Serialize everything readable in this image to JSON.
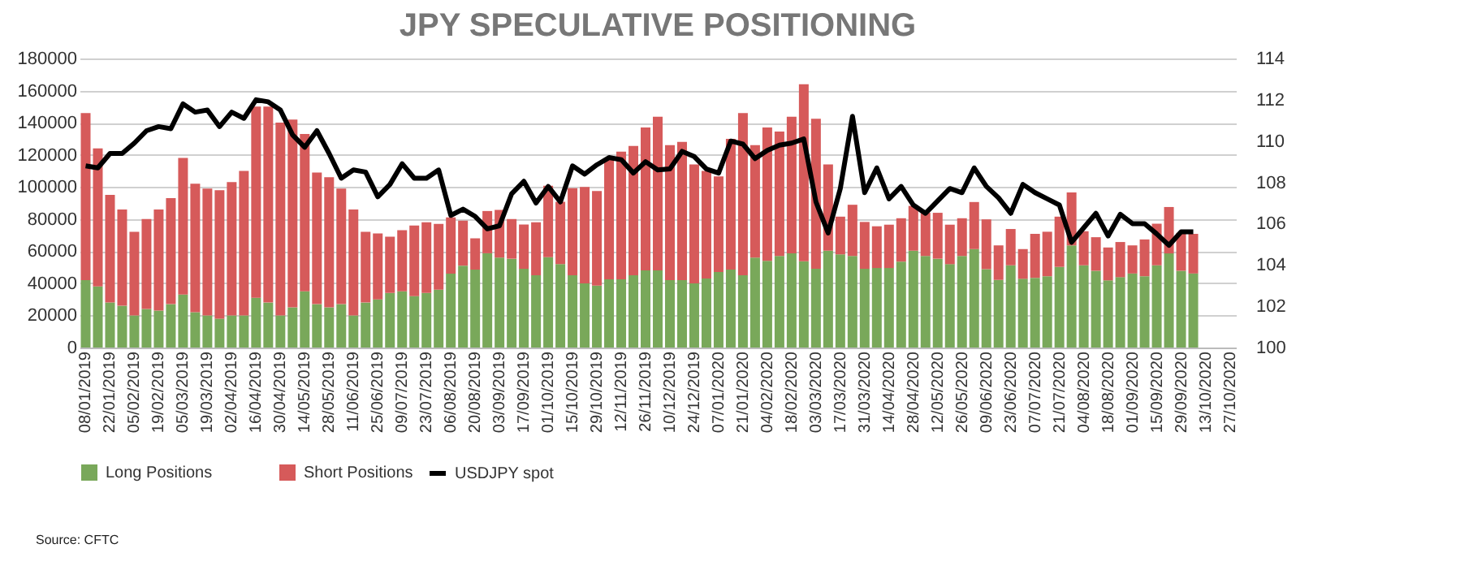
{
  "chart_data": {
    "type": "bar",
    "title": "JPY SPECULATIVE POSITIONING",
    "stacked": true,
    "grid": "y",
    "legend": "bottom",
    "categories": [
      "08/01/2019",
      null,
      "22/01/2019",
      null,
      "05/02/2019",
      null,
      "19/02/2019",
      null,
      "05/03/2019",
      null,
      "19/03/2019",
      null,
      "02/04/2019",
      null,
      "16/04/2019",
      null,
      "30/04/2019",
      null,
      "14/05/2019",
      null,
      "28/05/2019",
      null,
      "11/06/2019",
      null,
      "25/06/2019",
      null,
      "09/07/2019",
      null,
      "23/07/2019",
      null,
      "06/08/2019",
      null,
      "20/08/2019",
      null,
      "03/09/2019",
      null,
      "17/09/2019",
      null,
      "01/10/2019",
      null,
      "15/10/2019",
      null,
      "29/10/2019",
      null,
      "12/11/2019",
      null,
      "26/11/2019",
      null,
      "10/12/2019",
      null,
      "24/12/2019",
      null,
      "07/01/2020",
      null,
      "21/01/2020",
      null,
      "04/02/2020",
      null,
      "18/02/2020",
      null,
      "03/03/2020",
      null,
      "17/03/2020",
      null,
      "31/03/2020",
      null,
      "14/04/2020",
      null,
      "28/04/2020",
      null,
      "12/05/2020",
      null,
      "26/05/2020",
      null,
      "09/06/2020",
      null,
      "23/06/2020",
      null,
      "07/07/2020",
      null,
      "21/07/2020",
      null,
      "04/08/2020",
      null,
      "18/08/2020",
      null,
      "01/09/2020",
      null,
      "15/09/2020",
      null,
      "29/09/2020",
      null,
      "13/10/2020",
      null,
      "27/10/2020"
    ],
    "ylim": [
      0,
      180000
    ],
    "yticks": [
      0,
      20000,
      40000,
      60000,
      80000,
      100000,
      120000,
      140000,
      160000,
      180000
    ],
    "y2lim": [
      100,
      114
    ],
    "y2ticks": [
      100,
      102,
      104,
      106,
      108,
      110,
      112,
      114
    ],
    "series": [
      {
        "name": "Long Positions",
        "color": "#79a85a",
        "values": [
          42000,
          38000,
          28000,
          26000,
          20000,
          24000,
          23000,
          27000,
          33000,
          22000,
          20000,
          18000,
          20000,
          20000,
          31000,
          28000,
          20000,
          25000,
          35000,
          27000,
          25000,
          27000,
          20000,
          28000,
          30000,
          34000,
          35000,
          32000,
          34000,
          36000,
          46000,
          51000,
          48500,
          58700,
          56000,
          55300,
          49000,
          45000,
          56300,
          52000,
          45000,
          40000,
          38500,
          42500,
          42500,
          45000,
          48000,
          48000,
          42000,
          42000,
          40000,
          43000,
          47000,
          48500,
          45000,
          56000,
          54000,
          57000,
          58700,
          53700,
          49000,
          60300,
          58000,
          57000,
          49000,
          49500,
          49500,
          53500,
          60300,
          57000,
          55300,
          51900,
          57000,
          61300,
          48800,
          42100,
          51200,
          42800,
          43400,
          44400,
          50200,
          63600,
          51200,
          47800,
          41800,
          43800,
          46100,
          44400,
          51200,
          58600,
          47800,
          46100,
          null,
          null,
          null
        ]
      },
      {
        "name": "Short Positions",
        "color": "#d65a5a",
        "values": [
          104000,
          86000,
          67000,
          60000,
          52000,
          56000,
          63000,
          66000,
          85000,
          80000,
          79000,
          80000,
          83000,
          90000,
          119000,
          122000,
          120000,
          117000,
          98000,
          82000,
          81000,
          72000,
          66000,
          44000,
          41000,
          35000,
          38000,
          44000,
          44000,
          41000,
          35000,
          28000,
          19500,
          26300,
          29700,
          24700,
          27600,
          33000,
          44500,
          38700,
          54200,
          60000,
          59000,
          75200,
          79500,
          80500,
          89000,
          95700,
          84000,
          86000,
          74000,
          67000,
          59500,
          81500,
          101000,
          70000,
          83000,
          77500,
          85000,
          110300,
          93400,
          53700,
          23500,
          31900,
          29200,
          26000,
          27000,
          27000,
          27900,
          26900,
          28600,
          24600,
          23500,
          29300,
          31000,
          21500,
          22600,
          18500,
          27400,
          27700,
          31300,
          33000,
          21200,
          20900,
          20500,
          21900,
          17500,
          22900,
          25900,
          28900,
          23600,
          24700,
          null,
          null,
          null
        ]
      },
      {
        "name": "USDJPY spot",
        "type": "line",
        "axis": "y2",
        "color": "#000000",
        "values": [
          108.8,
          108.7,
          109.4,
          109.4,
          109.9,
          110.5,
          110.7,
          110.6,
          111.8,
          111.4,
          111.5,
          110.7,
          111.4,
          111.1,
          112.0,
          111.9,
          111.5,
          110.3,
          109.7,
          110.5,
          109.4,
          108.2,
          108.6,
          108.5,
          107.3,
          107.9,
          108.9,
          108.2,
          108.2,
          108.6,
          106.4,
          106.7,
          106.35,
          105.75,
          105.9,
          107.45,
          108.05,
          107.0,
          107.8,
          107.05,
          108.8,
          108.4,
          108.85,
          109.2,
          109.1,
          108.45,
          109.0,
          108.6,
          108.65,
          109.5,
          109.25,
          108.65,
          108.45,
          110.0,
          109.85,
          109.15,
          109.55,
          109.8,
          109.9,
          110.1,
          107.05,
          105.55,
          107.7,
          111.2,
          107.5,
          108.7,
          107.2,
          107.8,
          106.9,
          106.5,
          107.1,
          107.7,
          107.5,
          108.7,
          107.8,
          107.25,
          106.5,
          107.9,
          107.5,
          107.2,
          106.9,
          105.1,
          105.8,
          106.5,
          105.4,
          106.45,
          106.0,
          106.0,
          105.5,
          104.95,
          105.6,
          105.6,
          null,
          null,
          null
        ]
      }
    ],
    "annotations": [
      "Source: CFTC"
    ]
  }
}
